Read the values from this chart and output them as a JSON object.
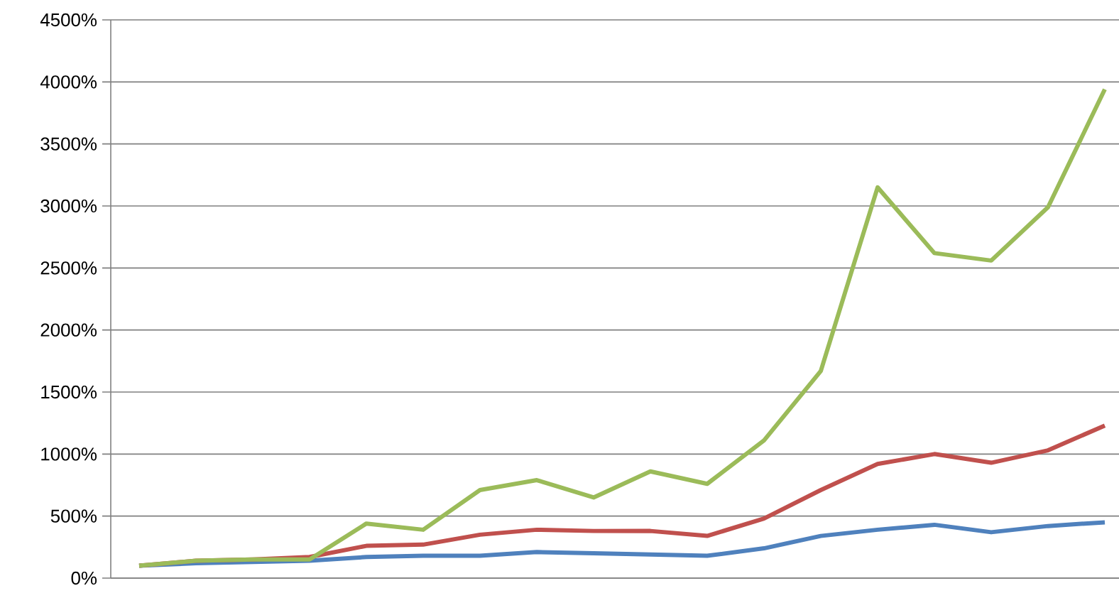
{
  "chart_data": {
    "type": "line",
    "categories": [
      null,
      null,
      null,
      null,
      null,
      null,
      null,
      null,
      null,
      null,
      null,
      null,
      null,
      null,
      null,
      null,
      null,
      null
    ],
    "series": [
      {
        "color": "#4f81bd",
        "values": [
          100,
          120,
          130,
          140,
          170,
          180,
          180,
          210,
          200,
          190,
          180,
          240,
          340,
          390,
          430,
          370,
          420,
          450
        ]
      },
      {
        "color": "#c0504d",
        "values": [
          100,
          140,
          150,
          170,
          260,
          270,
          350,
          390,
          380,
          380,
          340,
          480,
          710,
          920,
          1000,
          930,
          1030,
          1230
        ]
      },
      {
        "color": "#9bbb59",
        "values": [
          100,
          140,
          150,
          150,
          440,
          390,
          710,
          790,
          650,
          860,
          760,
          1110,
          1670,
          3150,
          2620,
          2560,
          2990,
          3940
        ]
      }
    ],
    "ylim": [
      0,
      4500
    ],
    "yticks": [
      {
        "value": 0,
        "label": "0%"
      },
      {
        "value": 500,
        "label": "500%"
      },
      {
        "value": 1000,
        "label": "1000%"
      },
      {
        "value": 1500,
        "label": "1500%"
      },
      {
        "value": 2000,
        "label": "2000%"
      },
      {
        "value": 2500,
        "label": "2500%"
      },
      {
        "value": 3000,
        "label": "3000%"
      },
      {
        "value": 3500,
        "label": "3500%"
      },
      {
        "value": 4000,
        "label": "4000%"
      },
      {
        "value": 4500,
        "label": "4500%"
      }
    ],
    "grid": "y",
    "tick_labels": "y",
    "marker": "none",
    "line_style": "solid"
  }
}
